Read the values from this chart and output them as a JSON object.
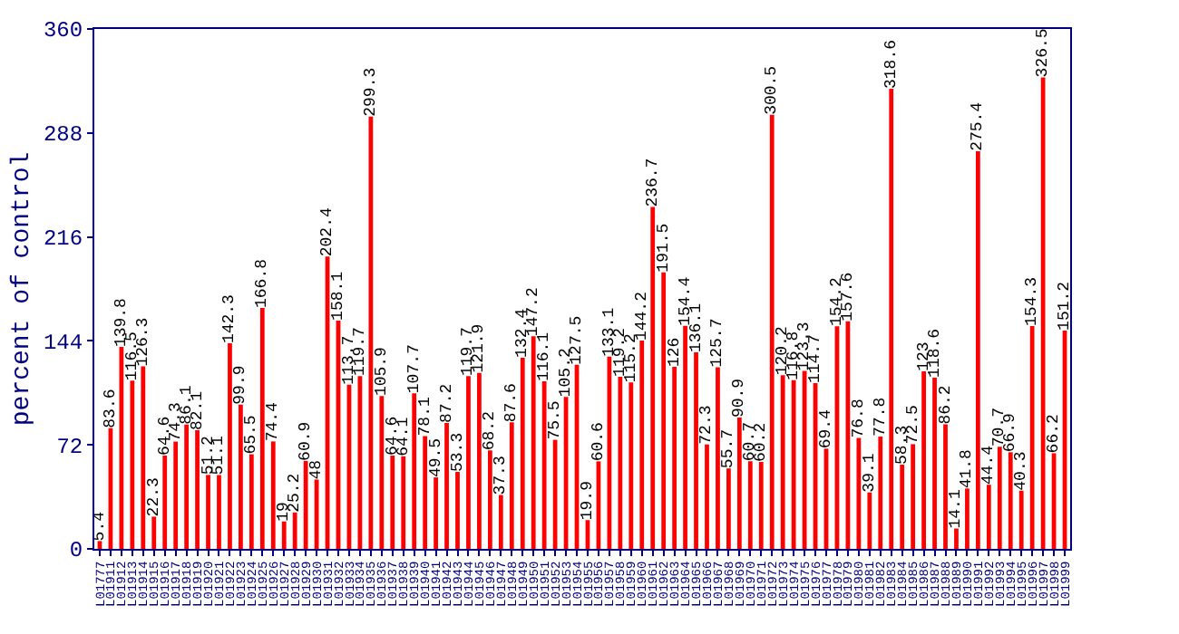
{
  "chart_data": {
    "type": "bar",
    "ylabel": "percent of control",
    "categories": [
      "L01777",
      "L01911",
      "L01912",
      "L01913",
      "L01914",
      "L01915",
      "L01916",
      "L01917",
      "L01918",
      "L01919",
      "L01920",
      "L01921",
      "L01922",
      "L01923",
      "L01924",
      "L01925",
      "L01926",
      "L01927",
      "L01928",
      "L01929",
      "L01930",
      "L01931",
      "L01932",
      "L01933",
      "L01934",
      "L01935",
      "L01936",
      "L01937",
      "L01938",
      "L01939",
      "L01940",
      "L01941",
      "L01942",
      "L01943",
      "L01944",
      "L01945",
      "L01946",
      "L01947",
      "L01948",
      "L01949",
      "L01950",
      "L01951",
      "L01952",
      "L01953",
      "L01954",
      "L01955",
      "L01956",
      "L01957",
      "L01958",
      "L01959",
      "L01960",
      "L01961",
      "L01962",
      "L01963",
      "L01964",
      "L01965",
      "L01966",
      "L01967",
      "L01968",
      "L01969",
      "L01970",
      "L01971",
      "L01972",
      "L01973",
      "L01974",
      "L01975",
      "L01976",
      "L01977",
      "L01978",
      "L01979",
      "L01980",
      "L01981",
      "L01982",
      "L01983",
      "L01984",
      "L01985",
      "L01986",
      "L01987",
      "L01988",
      "L01989",
      "L01990",
      "L01991",
      "L01992",
      "L01993",
      "L01994",
      "L01995",
      "L01996",
      "L01997",
      "L01998",
      "L01999"
    ],
    "values": [
      5.4,
      83.6,
      139.8,
      116.5,
      126.3,
      22.3,
      64.6,
      74.3,
      86.1,
      82.1,
      51.2,
      51.1,
      142.3,
      99.9,
      65.5,
      166.8,
      74.4,
      19,
      25.2,
      60.9,
      48,
      202.4,
      158.1,
      113.7,
      119.7,
      299.3,
      105.9,
      64.6,
      64.1,
      107.7,
      78.1,
      49.5,
      87.2,
      53.3,
      119.7,
      121.9,
      68.2,
      37.3,
      87.6,
      132.4,
      147.2,
      116.1,
      75.5,
      105.2,
      127.5,
      19.9,
      60.6,
      133.1,
      119.2,
      115.2,
      144.2,
      236.7,
      191.5,
      126,
      154.4,
      136.1,
      72.3,
      125.7,
      55.7,
      90.9,
      60.7,
      60.2,
      300.5,
      120.2,
      116.8,
      123.3,
      114.7,
      69.4,
      154.2,
      157.6,
      76.8,
      39.1,
      77.8,
      318.6,
      58.3,
      72.5,
      123,
      118.6,
      86.2,
      14.1,
      41.8,
      275.4,
      44.4,
      70.7,
      66.9,
      40.3,
      154.3,
      326.5,
      66.2,
      151.2
    ],
    "color": "#ff0000",
    "ylim": [
      0,
      360
    ],
    "yticks": [
      0,
      72,
      144,
      216,
      288,
      360
    ],
    "data_labels": true
  }
}
